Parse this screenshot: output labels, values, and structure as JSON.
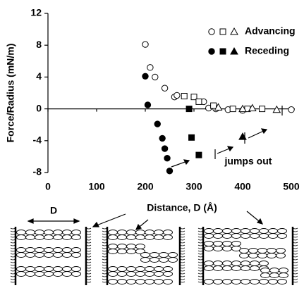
{
  "chart_data": {
    "type": "scatter",
    "x_label": "Distance, D (Å)",
    "y_label": "Force/Radius (mN/m)",
    "xlim": [
      0,
      500
    ],
    "ylim": [
      -8,
      12
    ],
    "xticks": [
      0,
      100,
      200,
      300,
      400,
      500
    ],
    "yticks": [
      -8,
      -4,
      0,
      4,
      8,
      12
    ],
    "annotation": "jumps out",
    "series": [
      {
        "name": "Advancing",
        "filled": false,
        "markers": [
          {
            "shape": "circle",
            "x": [
              200,
              210,
              220,
              240,
              260,
              265,
              320,
              330,
              345,
              370,
              400,
              500
            ],
            "values": [
              8.1,
              5.2,
              4.0,
              2.6,
              1.5,
              1.7,
              0.9,
              0.1,
              0,
              -0.1,
              -0.2,
              -0.1
            ]
          },
          {
            "shape": "square",
            "x": [
              280,
              300,
              310,
              340,
              380,
              410,
              440
            ],
            "values": [
              1.6,
              1.5,
              0.9,
              0.4,
              0,
              0,
              0
            ]
          },
          {
            "shape": "triangle",
            "x": [
              350,
              400,
              420,
              470
            ],
            "values": [
              0.2,
              0,
              0.1,
              -0.1
            ]
          }
        ]
      },
      {
        "name": "Receding",
        "filled": true,
        "markers": [
          {
            "shape": "circle",
            "x": [
              200,
              205,
              225,
              235,
              240,
              245,
              250
            ],
            "values": [
              4.1,
              0.5,
              -1.9,
              -3.7,
              -5.0,
              -6.2,
              -7.8
            ]
          },
          {
            "shape": "square",
            "x": [
              290,
              295,
              310
            ],
            "values": [
              0,
              -3.6,
              -5.8
            ]
          },
          {
            "shape": "triangle",
            "x": [
              400
            ],
            "values": [
              -3.5
            ]
          }
        ]
      }
    ]
  },
  "schematic": {
    "label": "D"
  }
}
